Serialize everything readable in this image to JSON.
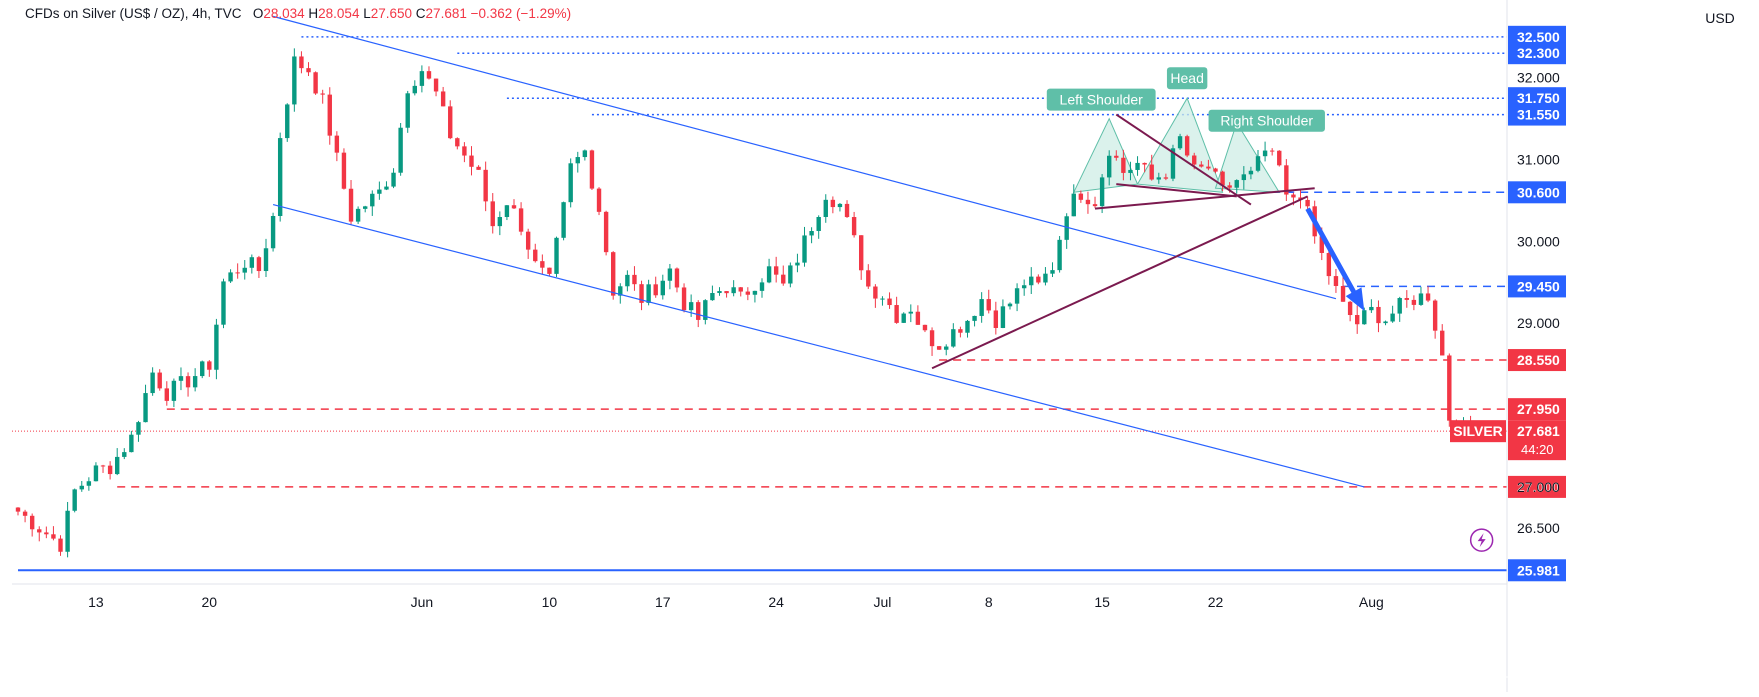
{
  "legend": {
    "symbol_text": "CFDs on Silver (US$ / OZ), 4h, TVC",
    "open_label": "O",
    "open": "28.034",
    "high_label": "H",
    "high": "28.054",
    "low_label": "L",
    "low": "27.650",
    "close_label": "C",
    "close": "27.681",
    "change": "−0.362 (−1.29%)"
  },
  "currency": "USD",
  "colors": {
    "up": "#089981",
    "down": "#f23645",
    "channel": "#2962ff",
    "wedge": "#7b1a4f",
    "pattern_fill": "#cfeee6",
    "pattern_label": "#5fbfa8",
    "tag_blue": "#2962ff",
    "tag_red": "#f23645"
  },
  "chart_data": {
    "type": "candlestick",
    "symbol": "SILVER",
    "interval": "4h",
    "ylim": [
      25.85,
      32.95
    ],
    "y_ticks": [
      26.5,
      27.0,
      29.0,
      30.0,
      31.0,
      32.0
    ],
    "y_tick_labels": [
      "26.500",
      "27.000",
      "29.000",
      "30.000",
      "31.000",
      "32.000"
    ],
    "x_tick_labels": [
      "13",
      "20",
      "Jun",
      "10",
      "17",
      "24",
      "Jul",
      "8",
      "15",
      "22",
      "Aug"
    ],
    "x_tick_bar_index": [
      11,
      27,
      57,
      75,
      91,
      107,
      122,
      137,
      153,
      169,
      191
    ],
    "last_price": 27.681,
    "countdown": "44:20",
    "anchors": [
      [
        0,
        26.7
      ],
      [
        3,
        26.5
      ],
      [
        6,
        26.3
      ],
      [
        8,
        26.95
      ],
      [
        11,
        27.2
      ],
      [
        13,
        27.25
      ],
      [
        16,
        27.6
      ],
      [
        19,
        28.4
      ],
      [
        21,
        28.15
      ],
      [
        24,
        28.3
      ],
      [
        27,
        28.5
      ],
      [
        29,
        29.5
      ],
      [
        32,
        29.75
      ],
      [
        34,
        29.65
      ],
      [
        36,
        30.3
      ],
      [
        37,
        31.3
      ],
      [
        39,
        32.2
      ],
      [
        41,
        32.1
      ],
      [
        43,
        31.7
      ],
      [
        45,
        31.0
      ],
      [
        47,
        30.3
      ],
      [
        49,
        30.45
      ],
      [
        51,
        30.6
      ],
      [
        53,
        30.9
      ],
      [
        55,
        31.9
      ],
      [
        57,
        32.1
      ],
      [
        59,
        31.8
      ],
      [
        61,
        31.3
      ],
      [
        63,
        31.05
      ],
      [
        65,
        30.8
      ],
      [
        67,
        30.2
      ],
      [
        69,
        30.5
      ],
      [
        71,
        30.2
      ],
      [
        73,
        29.7
      ],
      [
        75,
        29.5
      ],
      [
        77,
        30.4
      ],
      [
        78,
        30.9
      ],
      [
        80,
        31.1
      ],
      [
        82,
        30.4
      ],
      [
        84,
        29.4
      ],
      [
        86,
        29.55
      ],
      [
        88,
        29.3
      ],
      [
        90,
        29.45
      ],
      [
        92,
        29.65
      ],
      [
        94,
        29.25
      ],
      [
        96,
        29.05
      ],
      [
        98,
        29.35
      ],
      [
        100,
        29.45
      ],
      [
        102,
        29.3
      ],
      [
        104,
        29.5
      ],
      [
        106,
        29.65
      ],
      [
        108,
        29.45
      ],
      [
        110,
        29.8
      ],
      [
        112,
        30.2
      ],
      [
        114,
        30.6
      ],
      [
        116,
        30.45
      ],
      [
        118,
        30.0
      ],
      [
        120,
        29.45
      ],
      [
        122,
        29.35
      ],
      [
        124,
        29.1
      ],
      [
        126,
        29.2
      ],
      [
        128,
        28.85
      ],
      [
        130,
        28.75
      ],
      [
        132,
        28.9
      ],
      [
        134,
        29.05
      ],
      [
        136,
        29.3
      ],
      [
        138,
        29.05
      ],
      [
        140,
        29.25
      ],
      [
        142,
        29.5
      ],
      [
        144,
        29.45
      ],
      [
        146,
        29.7
      ],
      [
        148,
        30.4
      ],
      [
        150,
        30.6
      ],
      [
        152,
        30.5
      ],
      [
        154,
        31.15
      ],
      [
        156,
        30.85
      ],
      [
        158,
        30.95
      ],
      [
        160,
        30.75
      ],
      [
        162,
        30.85
      ],
      [
        164,
        31.25
      ],
      [
        166,
        30.85
      ],
      [
        168,
        30.9
      ],
      [
        170,
        30.6
      ],
      [
        172,
        30.75
      ],
      [
        174,
        30.8
      ],
      [
        176,
        31.1
      ],
      [
        178,
        30.9
      ],
      [
        179,
        30.5
      ],
      [
        181,
        30.6
      ],
      [
        183,
        30.05
      ],
      [
        185,
        29.6
      ],
      [
        187,
        29.2
      ],
      [
        189,
        29.0
      ],
      [
        191,
        29.15
      ],
      [
        193,
        29.05
      ],
      [
        195,
        29.2
      ],
      [
        197,
        29.3
      ],
      [
        199,
        29.35
      ],
      [
        201,
        28.6
      ],
      [
        202,
        27.85
      ],
      [
        204,
        27.7
      ],
      [
        206,
        27.681
      ]
    ],
    "levels": [
      {
        "price": 32.5,
        "label": "32.500",
        "color": "blue",
        "style": "dotted",
        "from_bar": 40
      },
      {
        "price": 32.3,
        "label": "32.300",
        "color": "blue",
        "style": "dotted",
        "from_bar": 62
      },
      {
        "price": 31.75,
        "label": "31.750",
        "color": "blue",
        "style": "dotted",
        "from_bar": 69
      },
      {
        "price": 31.55,
        "label": "31.550",
        "color": "blue",
        "style": "dotted",
        "from_bar": 81
      },
      {
        "price": 30.6,
        "label": "30.600",
        "color": "blue",
        "style": "dashed",
        "from_bar": 177
      },
      {
        "price": 29.45,
        "label": "29.450",
        "color": "blue",
        "style": "dashed",
        "from_bar": 187
      },
      {
        "price": 28.55,
        "label": "28.550",
        "color": "red",
        "style": "dashed",
        "from_bar": 130
      },
      {
        "price": 27.95,
        "label": "27.950",
        "color": "red",
        "style": "dashed",
        "from_bar": 21
      },
      {
        "price": 27.0,
        "label": "27.000",
        "color": "red",
        "style": "dashed",
        "from_bar": 14
      },
      {
        "price": 25.981,
        "label": "25.981",
        "color": "blue",
        "style": "solid",
        "from_bar": 0
      }
    ],
    "channel": [
      {
        "from": [
          36,
          32.75
        ],
        "to": [
          186,
          29.3
        ]
      },
      {
        "from": [
          36,
          30.45
        ],
        "to": [
          190,
          27.0
        ]
      }
    ],
    "wedge": [
      {
        "from": [
          129,
          28.45
        ],
        "to": [
          182,
          30.55
        ]
      },
      {
        "from": [
          152,
          30.4
        ],
        "to": [
          183,
          30.65
        ]
      },
      {
        "from": [
          155,
          30.7
        ],
        "to": [
          172,
          30.55
        ]
      },
      {
        "from": [
          155,
          31.55
        ],
        "to": [
          174,
          30.45
        ]
      }
    ],
    "pattern": {
      "left_shoulder": [
        [
          149,
          30.6
        ],
        [
          154,
          31.5
        ],
        [
          158,
          30.7
        ]
      ],
      "head": [
        [
          158,
          30.7
        ],
        [
          165,
          31.75
        ],
        [
          170,
          30.6
        ]
      ],
      "right_shoulder": [
        [
          169,
          30.65
        ],
        [
          172,
          31.45
        ],
        [
          178,
          30.6
        ]
      ]
    },
    "annotations": [
      "Left Shoulder",
      "Head",
      "Right Shoulder"
    ],
    "arrow": {
      "from": [
        182,
        30.4
      ],
      "to": [
        190,
        29.15
      ]
    },
    "last_price_label": "SILVER"
  }
}
